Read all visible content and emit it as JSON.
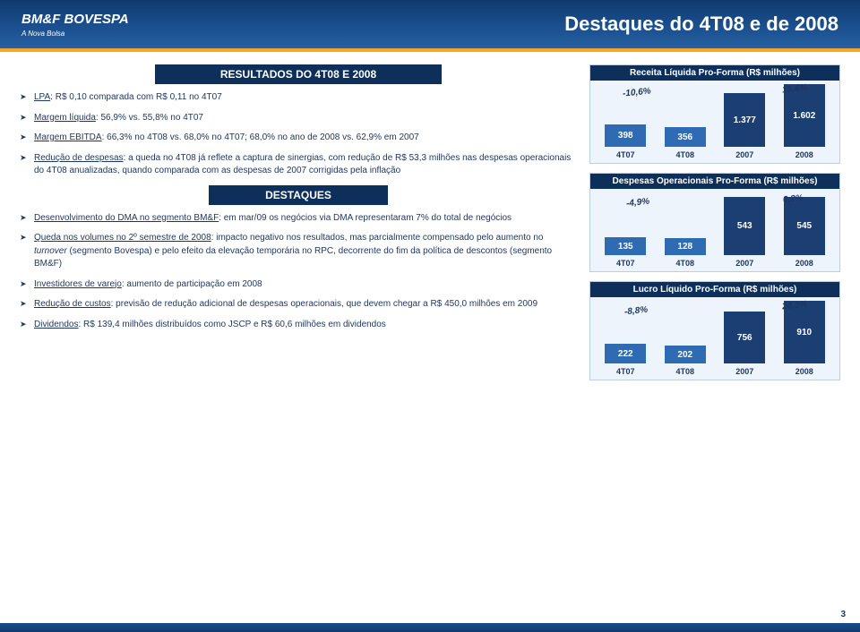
{
  "header": {
    "logo": "BM&F BOVESPA",
    "logo_sub": "A Nova Bolsa",
    "slide_title": "Destaques do 4T08 e de 2008"
  },
  "left": {
    "resultados_title": "RESULTADOS DO 4T08 E 2008",
    "destaques_title": "DESTAQUES",
    "b1_u": "LPA",
    "b1_rest": ": R$ 0,10 comparada com R$ 0,11 no 4T07",
    "b2_u": "Margem líquida",
    "b2_rest": ": 56,9% vs. 55,8% no 4T07",
    "b3_u": "Margem EBITDA",
    "b3_rest": ": 66,3% no 4T08 vs. 68,0% no 4T07; 68,0% no ano de 2008 vs. 62,9% em 2007",
    "b4_u": "Redução de despesas",
    "b4_rest": ": a queda no 4T08 já reflete a captura de sinergias, com redução de R$ 53,3 milhões nas despesas operacionais do 4T08 anualizadas, quando comparada com as despesas de 2007 corrigidas pela inflação",
    "b5_u": "Desenvolvimento do DMA no segmento BM&F",
    "b5_rest": ": em mar/09 os negócios via DMA representaram 7% do total de negócios",
    "b6_u": "Queda nos volumes no 2º semestre de 2008",
    "b6_mid1": ": impacto negativo nos resultados, mas parcialmente compensado pelo aumento no ",
    "b6_em": "turnover",
    "b6_mid2": " (segmento Bovespa) e pelo efeito da elevação temporária no RPC, decorrente do fim da política de descontos (segmento BM&F)",
    "b7_u": "Investidores de varejo",
    "b7_rest": ": aumento de participação em 2008",
    "b8_u": "Redução de custos",
    "b8_rest": ": previsão de redução adicional de despesas operacionais, que devem chegar a R$ 450,0 milhões em 2009",
    "b9_u": "Dividendos",
    "b9_rest": ": R$ 139,4 milhões distribuídos como JSCP e R$ 60,6 milhões em dividendos"
  },
  "charts": {
    "bar_color_1": "#2e6bb3",
    "bar_color_2": "#1c3f73",
    "c1": {
      "title": "Receita Líquida Pro-Forma (R$ milhões)",
      "labels": [
        "4T07",
        "4T08",
        "2007",
        "2008"
      ],
      "values": [
        "398",
        "356",
        "1.377",
        "1.602"
      ],
      "heights": [
        25,
        22,
        60,
        70
      ],
      "a_left": "-10,6%",
      "a_right": "16,4%"
    },
    "c2": {
      "title": "Despesas Operacionais Pro-Forma (R$ milhões)",
      "labels": [
        "4T07",
        "4T08",
        "2007",
        "2008"
      ],
      "values": [
        "135",
        "128",
        "543",
        "545"
      ],
      "heights": [
        20,
        19,
        65,
        65
      ],
      "a_left": "-4,9%",
      "a_right": "0,2%"
    },
    "c3": {
      "title": "Lucro Líquido Pro-Forma (R$ milhões)",
      "labels": [
        "4T07",
        "4T08",
        "2007",
        "2008"
      ],
      "values": [
        "222",
        "202",
        "756",
        "910"
      ],
      "heights": [
        22,
        20,
        58,
        70
      ],
      "a_left": "-8,8%",
      "a_right": "20,3%"
    }
  },
  "page_num": "3"
}
